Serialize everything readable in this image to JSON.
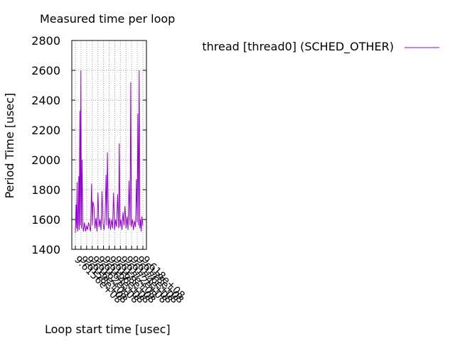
{
  "chart_data": {
    "type": "line",
    "title": "Measured time per loop",
    "xlabel": "Loop start time [usec]",
    "ylabel": "Period Time [usec]",
    "ylim": [
      1400,
      2800
    ],
    "yticks": [
      1400,
      1600,
      1800,
      2000,
      2200,
      2400,
      2600,
      2800
    ],
    "xticks": [
      "9.6156e+08",
      "9.6158e+08",
      "9.616e+08",
      "9.6162e+08",
      "9.6164e+08",
      "9.6166e+08",
      "9.6168e+08",
      "9.617e+08",
      "9.6172e+08",
      "9.6174e+08",
      "9.6176e+08",
      "9.6178e+08",
      "9.618e+08"
    ],
    "grid": true,
    "legend_position": "top-right",
    "series": [
      {
        "name": "thread [thread0] (SCHED_OTHER)",
        "color": "#9400d3",
        "points": [
          [
            0.0,
            1510
          ],
          [
            0.01,
            1700
          ],
          [
            0.018,
            1540
          ],
          [
            0.026,
            1850
          ],
          [
            0.034,
            1520
          ],
          [
            0.042,
            1580
          ],
          [
            0.05,
            1890
          ],
          [
            0.058,
            1530
          ],
          [
            0.066,
            2330
          ],
          [
            0.074,
            1560
          ],
          [
            0.082,
            2600
          ],
          [
            0.09,
            1540
          ],
          [
            0.1,
            2000
          ],
          [
            0.11,
            1560
          ],
          [
            0.12,
            1520
          ],
          [
            0.135,
            1580
          ],
          [
            0.15,
            1520
          ],
          [
            0.165,
            1560
          ],
          [
            0.18,
            1530
          ],
          [
            0.195,
            1580
          ],
          [
            0.21,
            1550
          ],
          [
            0.225,
            1520
          ],
          [
            0.24,
            1840
          ],
          [
            0.25,
            1560
          ],
          [
            0.26,
            1720
          ],
          [
            0.275,
            1690
          ],
          [
            0.29,
            1540
          ],
          [
            0.305,
            1610
          ],
          [
            0.32,
            1520
          ],
          [
            0.335,
            1780
          ],
          [
            0.35,
            1550
          ],
          [
            0.365,
            1600
          ],
          [
            0.38,
            1530
          ],
          [
            0.395,
            1790
          ],
          [
            0.41,
            1580
          ],
          [
            0.425,
            1530
          ],
          [
            0.44,
            1600
          ],
          [
            0.455,
            1900
          ],
          [
            0.465,
            1560
          ],
          [
            0.475,
            2050
          ],
          [
            0.49,
            1540
          ],
          [
            0.505,
            1610
          ],
          [
            0.52,
            1530
          ],
          [
            0.535,
            1600
          ],
          [
            0.55,
            1540
          ],
          [
            0.565,
            1780
          ],
          [
            0.58,
            1530
          ],
          [
            0.595,
            1600
          ],
          [
            0.61,
            1550
          ],
          [
            0.625,
            1770
          ],
          [
            0.64,
            1540
          ],
          [
            0.65,
            2110
          ],
          [
            0.66,
            1550
          ],
          [
            0.675,
            1600
          ],
          [
            0.69,
            1530
          ],
          [
            0.705,
            1650
          ],
          [
            0.72,
            1560
          ],
          [
            0.735,
            1690
          ],
          [
            0.75,
            1540
          ],
          [
            0.765,
            1620
          ],
          [
            0.78,
            1530
          ],
          [
            0.795,
            1860
          ],
          [
            0.81,
            1560
          ],
          [
            0.82,
            2520
          ],
          [
            0.83,
            1550
          ],
          [
            0.845,
            1600
          ],
          [
            0.86,
            1530
          ],
          [
            0.875,
            1590
          ],
          [
            0.89,
            1550
          ],
          [
            0.905,
            1870
          ],
          [
            0.915,
            1580
          ],
          [
            0.925,
            2310
          ],
          [
            0.935,
            1560
          ],
          [
            0.945,
            2600
          ],
          [
            0.955,
            1540
          ],
          [
            0.965,
            1600
          ],
          [
            0.975,
            1520
          ],
          [
            0.985,
            1620
          ],
          [
            1.0,
            1560
          ]
        ]
      }
    ]
  }
}
